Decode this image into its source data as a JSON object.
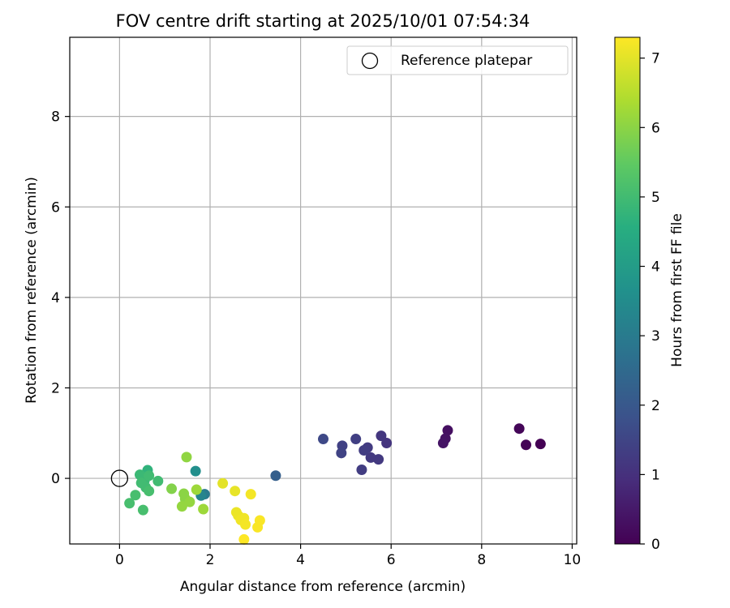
{
  "chart_data": {
    "type": "scatter",
    "title": "FOV centre drift starting at 2025/10/01 07:54:34",
    "xlabel": "Angular distance from reference (arcmin)",
    "ylabel": "Rotation from reference (arcmin)",
    "xlim": [
      -1.1,
      10.1
    ],
    "ylim": [
      -1.45,
      9.75
    ],
    "xticks": [
      0,
      2,
      4,
      6,
      8,
      10
    ],
    "yticks": [
      0,
      2,
      4,
      6,
      8
    ],
    "grid": true,
    "legend": {
      "placement": "top-right",
      "entries": [
        {
          "label": "Reference platepar",
          "marker": "open-circle"
        }
      ]
    },
    "reference_point": {
      "x": 0,
      "y": 0
    },
    "colorbar": {
      "label": "Hours from first FF file",
      "colormap": "viridis",
      "range": [
        0,
        7.3
      ],
      "ticks": [
        0,
        1,
        2,
        3,
        4,
        5,
        6,
        7
      ]
    },
    "points": [
      {
        "x": 9.3,
        "y": 0.76,
        "t": 0.0
      },
      {
        "x": 8.98,
        "y": 0.74,
        "t": 0.05
      },
      {
        "x": 8.83,
        "y": 1.1,
        "t": 0.1
      },
      {
        "x": 7.25,
        "y": 1.06,
        "t": 0.3
      },
      {
        "x": 7.2,
        "y": 0.88,
        "t": 0.35
      },
      {
        "x": 7.15,
        "y": 0.78,
        "t": 0.4
      },
      {
        "x": 5.9,
        "y": 0.78,
        "t": 1.1
      },
      {
        "x": 5.78,
        "y": 0.94,
        "t": 1.15
      },
      {
        "x": 5.72,
        "y": 0.42,
        "t": 1.2
      },
      {
        "x": 5.55,
        "y": 0.46,
        "t": 1.2
      },
      {
        "x": 5.48,
        "y": 0.68,
        "t": 1.25
      },
      {
        "x": 5.4,
        "y": 0.62,
        "t": 1.3
      },
      {
        "x": 5.35,
        "y": 0.19,
        "t": 1.3
      },
      {
        "x": 5.22,
        "y": 0.87,
        "t": 1.35
      },
      {
        "x": 4.92,
        "y": 0.72,
        "t": 1.4
      },
      {
        "x": 4.9,
        "y": 0.56,
        "t": 1.45
      },
      {
        "x": 4.5,
        "y": 0.87,
        "t": 1.6
      },
      {
        "x": 3.45,
        "y": 0.06,
        "t": 2.2
      },
      {
        "x": 1.88,
        "y": -0.35,
        "t": 3.0
      },
      {
        "x": 1.8,
        "y": -0.38,
        "t": 3.3
      },
      {
        "x": 1.68,
        "y": 0.16,
        "t": 3.6
      },
      {
        "x": 0.62,
        "y": 0.18,
        "t": 4.7
      },
      {
        "x": 0.45,
        "y": 0.08,
        "t": 4.9
      },
      {
        "x": 0.55,
        "y": -0.05,
        "t": 4.9
      },
      {
        "x": 0.65,
        "y": 0.06,
        "t": 5.0
      },
      {
        "x": 0.85,
        "y": -0.06,
        "t": 5.0
      },
      {
        "x": 0.48,
        "y": -0.1,
        "t": 5.0
      },
      {
        "x": 0.58,
        "y": -0.2,
        "t": 5.0
      },
      {
        "x": 0.65,
        "y": -0.28,
        "t": 5.1
      },
      {
        "x": 0.35,
        "y": -0.37,
        "t": 5.1
      },
      {
        "x": 0.22,
        "y": -0.55,
        "t": 5.1
      },
      {
        "x": 0.52,
        "y": -0.7,
        "t": 5.1
      },
      {
        "x": 1.15,
        "y": -0.23,
        "t": 5.9
      },
      {
        "x": 1.42,
        "y": -0.34,
        "t": 6.0
      },
      {
        "x": 1.45,
        "y": -0.45,
        "t": 6.0
      },
      {
        "x": 1.48,
        "y": 0.47,
        "t": 6.05
      },
      {
        "x": 1.38,
        "y": -0.62,
        "t": 6.1
      },
      {
        "x": 1.55,
        "y": -0.52,
        "t": 6.1
      },
      {
        "x": 1.7,
        "y": -0.25,
        "t": 6.2
      },
      {
        "x": 1.85,
        "y": -0.68,
        "t": 6.2
      },
      {
        "x": 2.28,
        "y": -0.11,
        "t": 7.0
      },
      {
        "x": 2.55,
        "y": -0.28,
        "t": 7.05
      },
      {
        "x": 2.58,
        "y": -0.75,
        "t": 7.1
      },
      {
        "x": 2.62,
        "y": -0.82,
        "t": 7.1
      },
      {
        "x": 2.68,
        "y": -0.92,
        "t": 7.15
      },
      {
        "x": 2.75,
        "y": -0.88,
        "t": 7.15
      },
      {
        "x": 2.78,
        "y": -1.02,
        "t": 7.2
      },
      {
        "x": 2.9,
        "y": -0.35,
        "t": 7.2
      },
      {
        "x": 3.05,
        "y": -1.08,
        "t": 7.25
      },
      {
        "x": 3.1,
        "y": -0.93,
        "t": 7.25
      },
      {
        "x": 2.75,
        "y": -1.35,
        "t": 7.3
      }
    ]
  }
}
